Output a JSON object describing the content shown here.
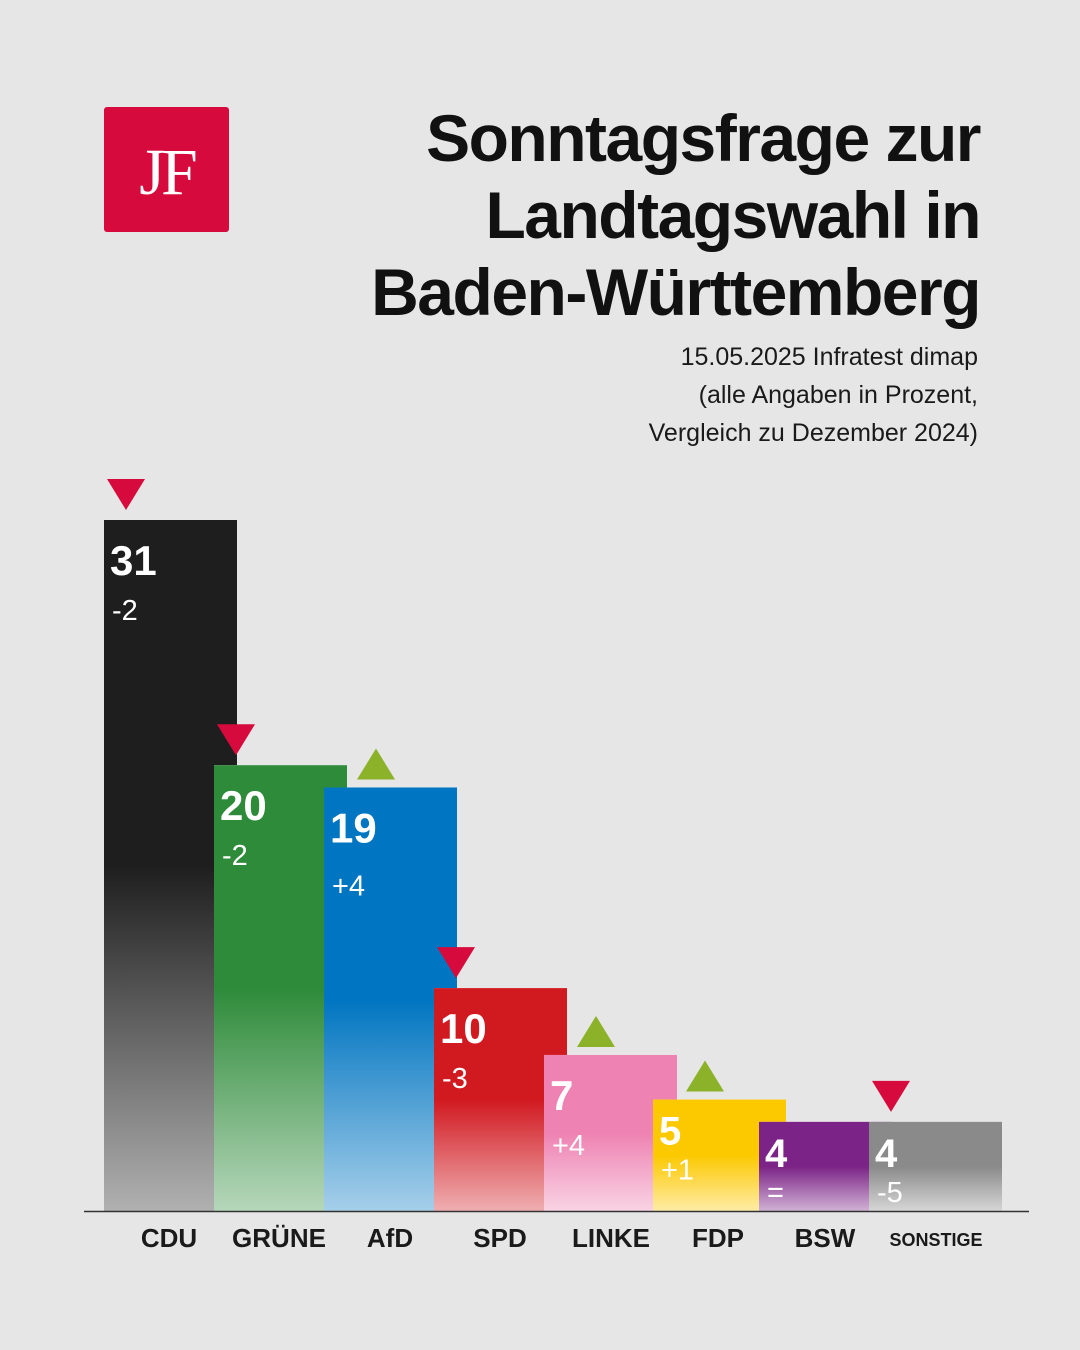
{
  "logo": {
    "text": "JF"
  },
  "title_lines": [
    "Sonntagsfrage zur",
    "Landtagswahl in",
    "Baden-Württemberg"
  ],
  "subtitle_lines": [
    "15.05.2025 Infratest dimap",
    "(alle Angaben in Prozent,",
    "Vergleich zu Dezember 2024)"
  ],
  "colors": {
    "background": "#e6e6e6",
    "brand": "#d60a3c",
    "arrow_down": "#d60a3c",
    "arrow_up": "#8cb22a"
  },
  "chart_data": {
    "type": "bar",
    "title": "Sonntagsfrage zur Landtagswahl in Baden-Württemberg",
    "categories": [
      "CDU",
      "GRÜNE",
      "AfD",
      "SPD",
      "LINKE",
      "FDP",
      "BSW",
      "SONSTIGE"
    ],
    "values": [
      31,
      20,
      19,
      10,
      7,
      5,
      4,
      4
    ],
    "value_labels": [
      "31",
      "20",
      "19",
      "10",
      "7",
      "5",
      "4",
      "4"
    ],
    "changes": [
      "-2",
      "-2",
      "+4",
      "-3",
      "+4",
      "+1",
      "=",
      "-5"
    ],
    "trend": [
      "down",
      "down",
      "up",
      "down",
      "up",
      "up",
      "none",
      "down"
    ],
    "colors": [
      "#1e1e1e",
      "#2e8b3a",
      "#0075c1",
      "#d11920",
      "#ee82b2",
      "#fcc800",
      "#7b2386",
      "#8a8a8a"
    ],
    "ylim": [
      0,
      31
    ],
    "xlabel": "",
    "ylabel": "",
    "legend": "none"
  }
}
